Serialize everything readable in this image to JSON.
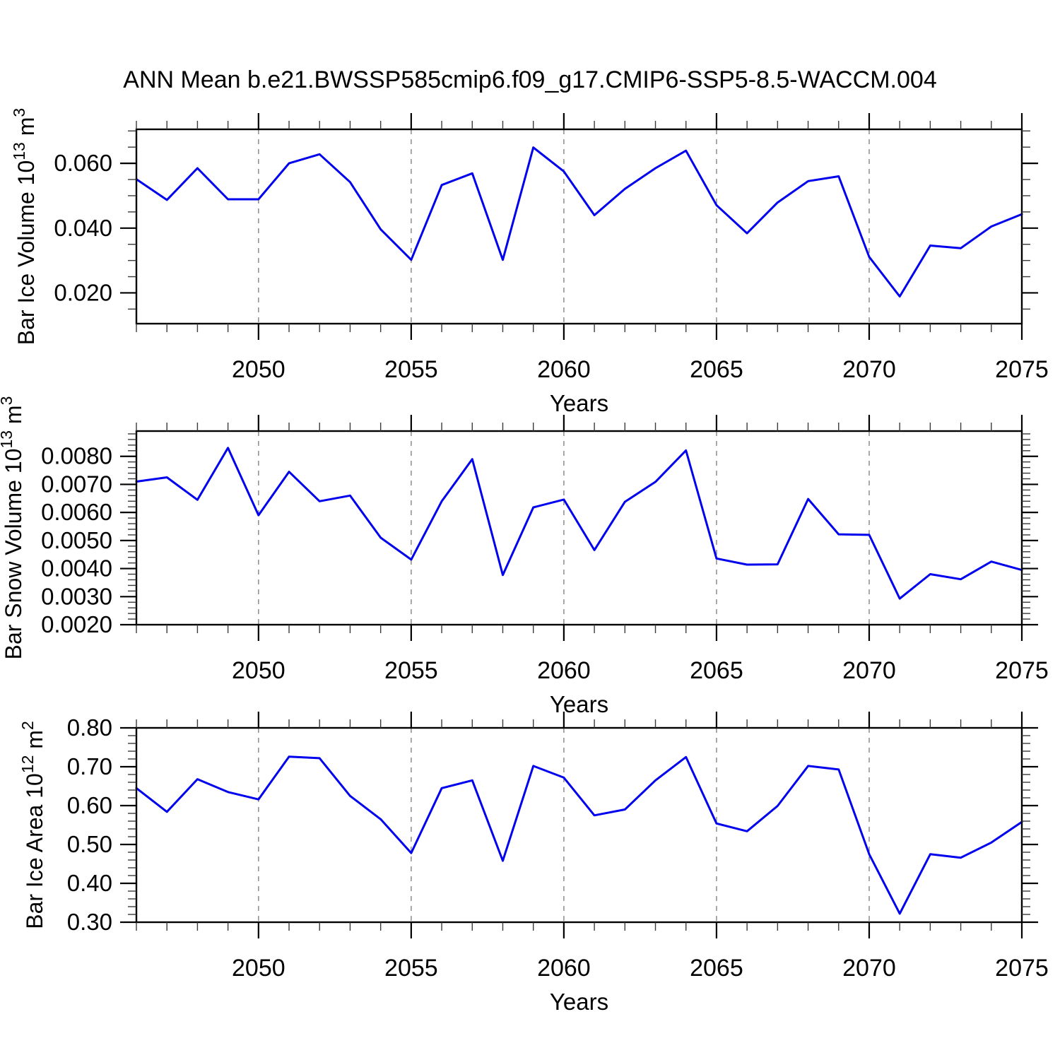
{
  "title": "ANN Mean b.e21.BWSSP585cmip6.f09_g17.CMIP6-SSP5-8.5-WACCM.004",
  "colors": {
    "line": "#0000EE",
    "grid": "#949494",
    "axis": "#000000",
    "minor_tick": "#3a3a3a"
  },
  "x_axis": {
    "label": "Years",
    "range": [
      2046,
      2075
    ],
    "major_ticks": [
      2050,
      2055,
      2060,
      2065,
      2070,
      2075
    ],
    "major_labels": [
      "2050",
      "2055",
      "2060",
      "2065",
      "2070",
      "2075"
    ],
    "gridlines": [
      2050,
      2055,
      2060,
      2065,
      2070
    ],
    "minor_step": 1
  },
  "chart_data": [
    {
      "type": "line",
      "name": "bar-ice-volume",
      "title": "",
      "xlabel": "Years",
      "ylabel_segments": [
        {
          "t": "Bar Ice Volume 10",
          "sup": false
        },
        {
          "t": "13",
          "sup": true
        },
        {
          "t": " m",
          "sup": false
        },
        {
          "t": "3",
          "sup": true
        }
      ],
      "ylim": [
        0.0105,
        0.0705
      ],
      "y_major": [
        {
          "v": 0.02,
          "label": "0.020"
        },
        {
          "v": 0.04,
          "label": "0.040"
        },
        {
          "v": 0.06,
          "label": "0.060"
        }
      ],
      "y_minor_step": 0.005,
      "x": [
        2046,
        2047,
        2048,
        2049,
        2050,
        2051,
        2052,
        2053,
        2054,
        2055,
        2056,
        2057,
        2058,
        2059,
        2060,
        2061,
        2062,
        2063,
        2064,
        2065,
        2066,
        2067,
        2068,
        2069,
        2070,
        2071,
        2072,
        2073,
        2074,
        2075
      ],
      "values": [
        0.0551,
        0.0487,
        0.0585,
        0.0489,
        0.0489,
        0.06,
        0.0628,
        0.0542,
        0.0396,
        0.0302,
        0.0533,
        0.0569,
        0.0302,
        0.0649,
        0.0575,
        0.044,
        0.0521,
        0.0585,
        0.0639,
        0.0471,
        0.0384,
        0.0479,
        0.0545,
        0.056,
        0.0311,
        0.0189,
        0.0346,
        0.0338,
        0.0405,
        0.0443
      ]
    },
    {
      "type": "line",
      "name": "bar-snow-volume",
      "title": "",
      "xlabel": "Years",
      "ylabel_segments": [
        {
          "t": "Bar Snow Volume 10",
          "sup": false
        },
        {
          "t": "13",
          "sup": true
        },
        {
          "t": " m",
          "sup": false
        },
        {
          "t": "3",
          "sup": true
        }
      ],
      "ylim": [
        0.002,
        0.0089
      ],
      "y_major": [
        {
          "v": 0.002,
          "label": "0.0020"
        },
        {
          "v": 0.003,
          "label": "0.0030"
        },
        {
          "v": 0.004,
          "label": "0.0040"
        },
        {
          "v": 0.005,
          "label": "0.0050"
        },
        {
          "v": 0.006,
          "label": "0.0060"
        },
        {
          "v": 0.007,
          "label": "0.0070"
        },
        {
          "v": 0.008,
          "label": "0.0080"
        }
      ],
      "y_minor_step": 0.0002,
      "x": [
        2046,
        2047,
        2048,
        2049,
        2050,
        2051,
        2052,
        2053,
        2054,
        2055,
        2056,
        2057,
        2058,
        2059,
        2060,
        2061,
        2062,
        2063,
        2064,
        2065,
        2066,
        2067,
        2068,
        2069,
        2070,
        2071,
        2072,
        2073,
        2074,
        2075
      ],
      "values": [
        0.0071,
        0.00725,
        0.00645,
        0.0083,
        0.0059,
        0.00745,
        0.0064,
        0.0066,
        0.0051,
        0.00432,
        0.0064,
        0.0079,
        0.00377,
        0.00618,
        0.00646,
        0.00466,
        0.00638,
        0.00709,
        0.00821,
        0.00436,
        0.00414,
        0.00415,
        0.00648,
        0.00522,
        0.0052,
        0.00293,
        0.0038,
        0.00362,
        0.00425,
        0.00395
      ]
    },
    {
      "type": "line",
      "name": "bar-ice-area",
      "title": "",
      "xlabel": "Years",
      "ylabel_segments": [
        {
          "t": "Bar Ice Area 10",
          "sup": false
        },
        {
          "t": "12",
          "sup": true
        },
        {
          "t": " m",
          "sup": false
        },
        {
          "t": "2",
          "sup": true
        }
      ],
      "ylim": [
        0.3,
        0.8
      ],
      "y_major": [
        {
          "v": 0.3,
          "label": "0.30"
        },
        {
          "v": 0.4,
          "label": "0.40"
        },
        {
          "v": 0.5,
          "label": "0.50"
        },
        {
          "v": 0.6,
          "label": "0.60"
        },
        {
          "v": 0.7,
          "label": "0.70"
        },
        {
          "v": 0.8,
          "label": "0.80"
        }
      ],
      "y_minor_step": 0.02,
      "x": [
        2046,
        2047,
        2048,
        2049,
        2050,
        2051,
        2052,
        2053,
        2054,
        2055,
        2056,
        2057,
        2058,
        2059,
        2060,
        2061,
        2062,
        2063,
        2064,
        2065,
        2066,
        2067,
        2068,
        2069,
        2070,
        2071,
        2072,
        2073,
        2074,
        2075
      ],
      "values": [
        0.645,
        0.584,
        0.668,
        0.635,
        0.616,
        0.726,
        0.722,
        0.625,
        0.565,
        0.478,
        0.645,
        0.665,
        0.458,
        0.702,
        0.672,
        0.575,
        0.59,
        0.665,
        0.725,
        0.554,
        0.534,
        0.599,
        0.702,
        0.693,
        0.475,
        0.322,
        0.475,
        0.466,
        0.505,
        0.558
      ]
    }
  ]
}
